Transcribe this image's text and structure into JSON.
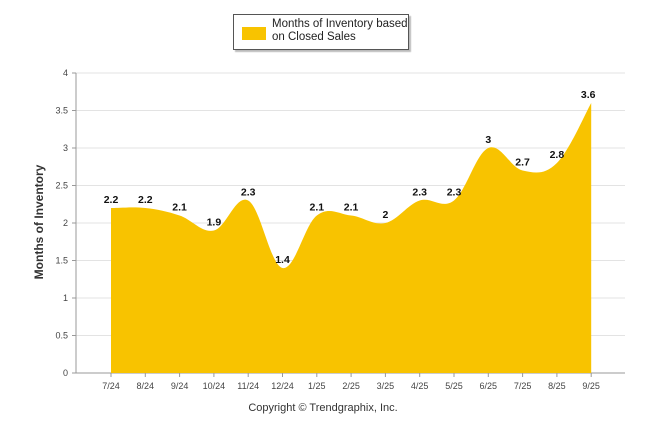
{
  "chart_data": {
    "type": "area",
    "title": "",
    "xlabel": "",
    "ylabel": "Months of Inventory",
    "legend": "top-center",
    "grid": true,
    "ylim": [
      0,
      4
    ],
    "yticks": [
      "0",
      "0.5",
      "1",
      "1.5",
      "2",
      "2.5",
      "3",
      "3.5",
      "4"
    ],
    "categories": [
      "7/24",
      "8/24",
      "9/24",
      "10/24",
      "11/24",
      "12/24",
      "1/25",
      "2/25",
      "3/25",
      "4/25",
      "5/25",
      "6/25",
      "7/25",
      "8/25",
      "9/25"
    ],
    "series": [
      {
        "name": "Months of Inventory based on Closed Sales",
        "color": "#F8C300",
        "values": [
          2.2,
          2.2,
          2.1,
          1.9,
          2.3,
          1.4,
          2.1,
          2.1,
          2,
          2.3,
          2.3,
          3,
          2.7,
          2.8,
          3.6
        ],
        "labels": [
          "2.2",
          "2.2",
          "2.1",
          "1.9",
          "2.3",
          "1.4",
          "2.1",
          "2.1",
          "2",
          "2.3",
          "2.3",
          "3",
          "2.7",
          "2.8",
          "3.6"
        ]
      }
    ]
  },
  "legend": {
    "label": "Months of Inventory based on Closed Sales",
    "color": "#F8C300"
  },
  "footer": {
    "copyright": "Copyright © Trendgraphix, Inc."
  }
}
